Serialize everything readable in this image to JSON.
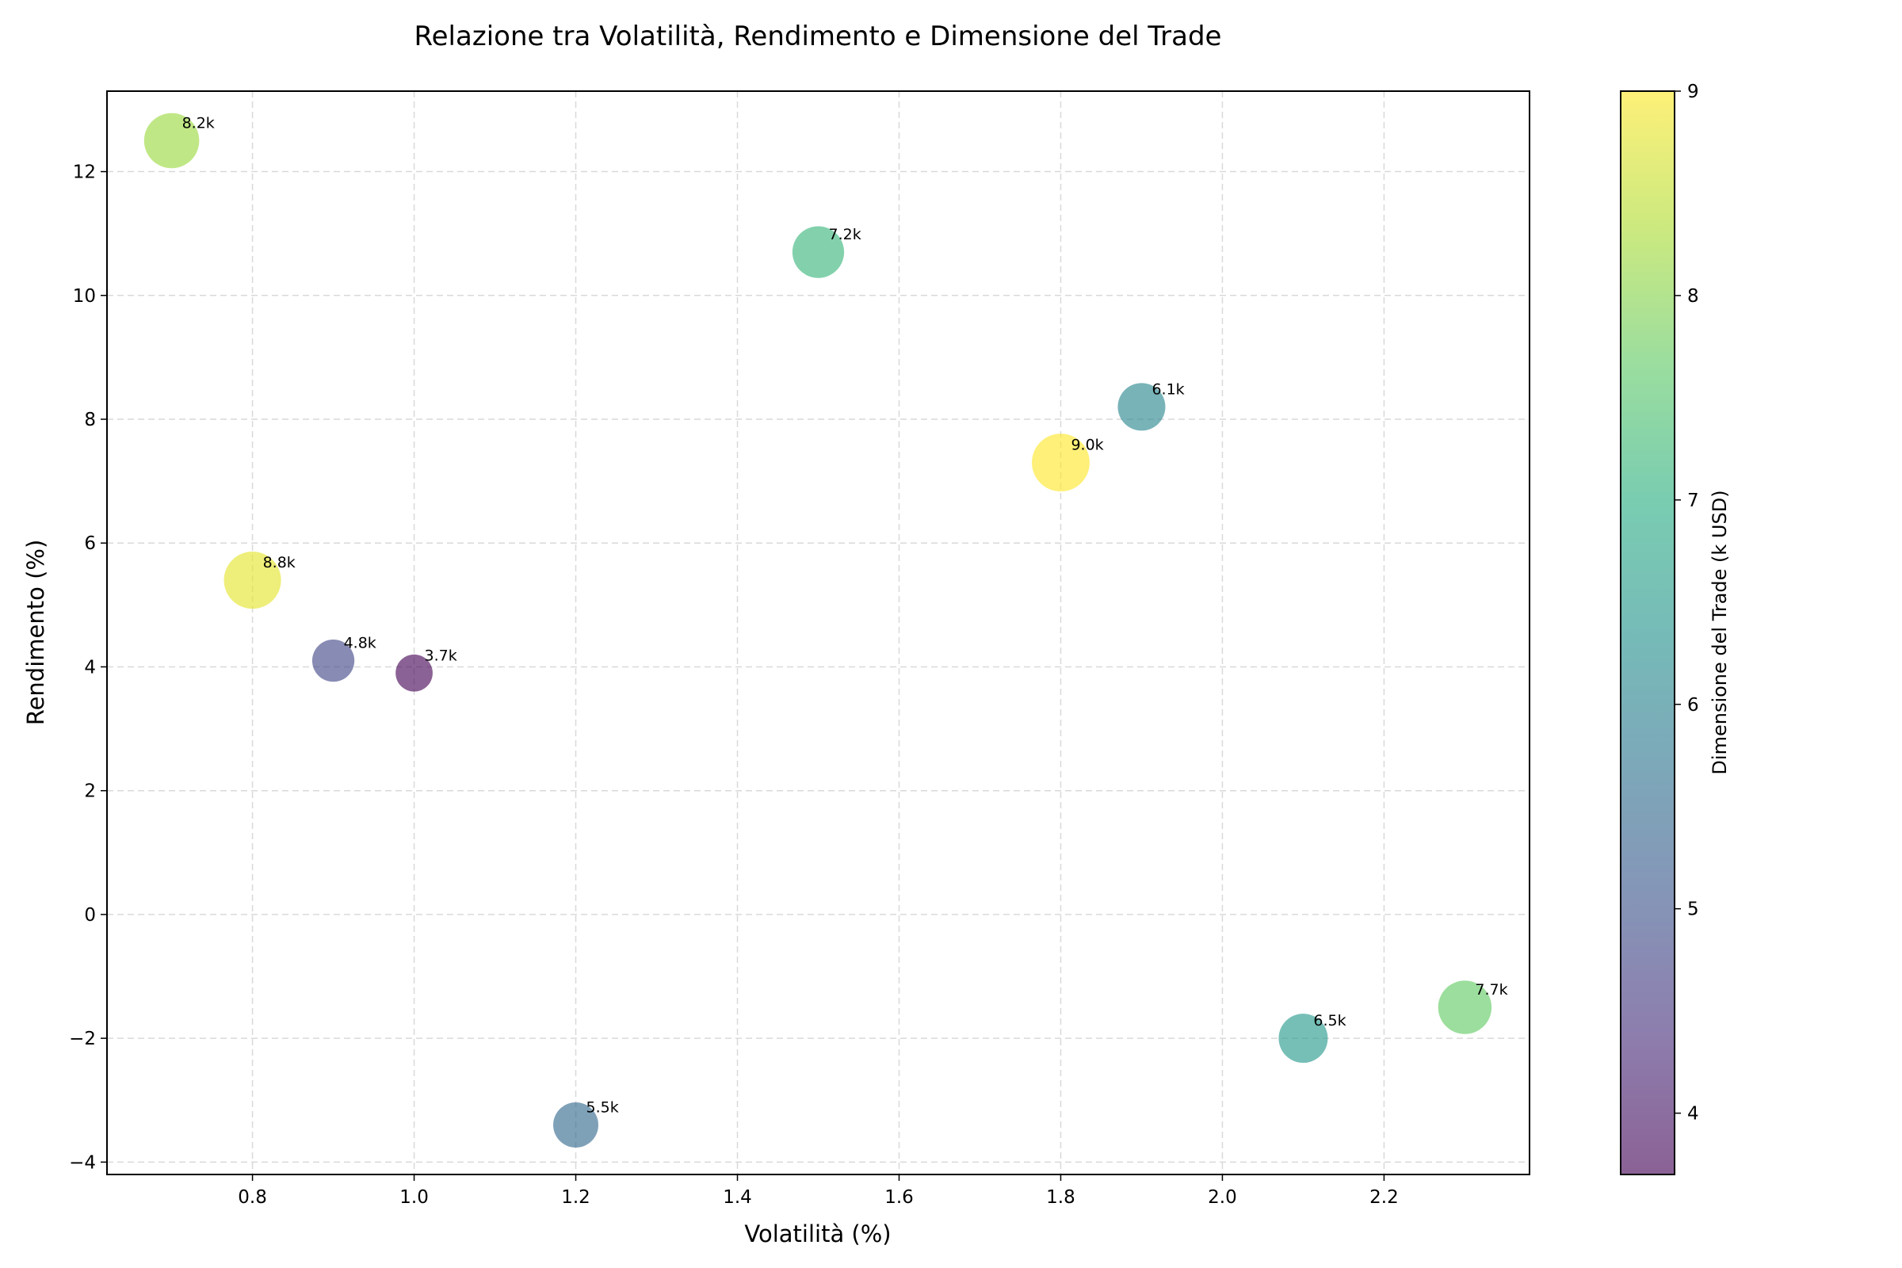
{
  "chart_data": {
    "type": "scatter",
    "title": "Relazione tra Volatilità, Rendimento e Dimensione del Trade",
    "xlabel": "Volatilità (%)",
    "ylabel": "Rendimento (%)",
    "xlim": [
      0.62,
      2.38
    ],
    "ylim": [
      -4.2,
      13.3
    ],
    "xticks": [
      0.8,
      1.0,
      1.2,
      1.4,
      1.6,
      1.8,
      2.0,
      2.2
    ],
    "xtick_labels": [
      "0.8",
      "1.0",
      "1.2",
      "1.4",
      "1.6",
      "1.8",
      "2.0",
      "2.2"
    ],
    "yticks": [
      -4,
      -2,
      0,
      2,
      4,
      6,
      8,
      10,
      12
    ],
    "ytick_labels": [
      "−4",
      "−2",
      "0",
      "2",
      "4",
      "6",
      "8",
      "10",
      "12"
    ],
    "grid": true,
    "colormap": "viridis",
    "colorbar": {
      "label": "Dimensione del Trade (k USD)",
      "range": [
        3.7,
        9.0
      ],
      "ticks": [
        4,
        5,
        6,
        7,
        8,
        9
      ],
      "tick_labels": [
        "4",
        "5",
        "6",
        "7",
        "8",
        "9"
      ]
    },
    "points": [
      {
        "x": 0.7,
        "y": 12.5,
        "size": 8.2,
        "label": "8.2k"
      },
      {
        "x": 0.8,
        "y": 5.4,
        "size": 8.8,
        "label": "8.8k"
      },
      {
        "x": 0.9,
        "y": 4.1,
        "size": 4.8,
        "label": "4.8k"
      },
      {
        "x": 1.0,
        "y": 3.9,
        "size": 3.7,
        "label": "3.7k"
      },
      {
        "x": 1.2,
        "y": -3.4,
        "size": 5.5,
        "label": "5.5k"
      },
      {
        "x": 1.5,
        "y": 10.7,
        "size": 7.2,
        "label": "7.2k"
      },
      {
        "x": 1.8,
        "y": 7.3,
        "size": 9.0,
        "label": "9.0k"
      },
      {
        "x": 1.9,
        "y": 8.2,
        "size": 6.1,
        "label": "6.1k"
      },
      {
        "x": 2.1,
        "y": -2.0,
        "size": 6.5,
        "label": "6.5k"
      },
      {
        "x": 2.3,
        "y": -1.5,
        "size": 7.7,
        "label": "7.7k"
      }
    ]
  }
}
